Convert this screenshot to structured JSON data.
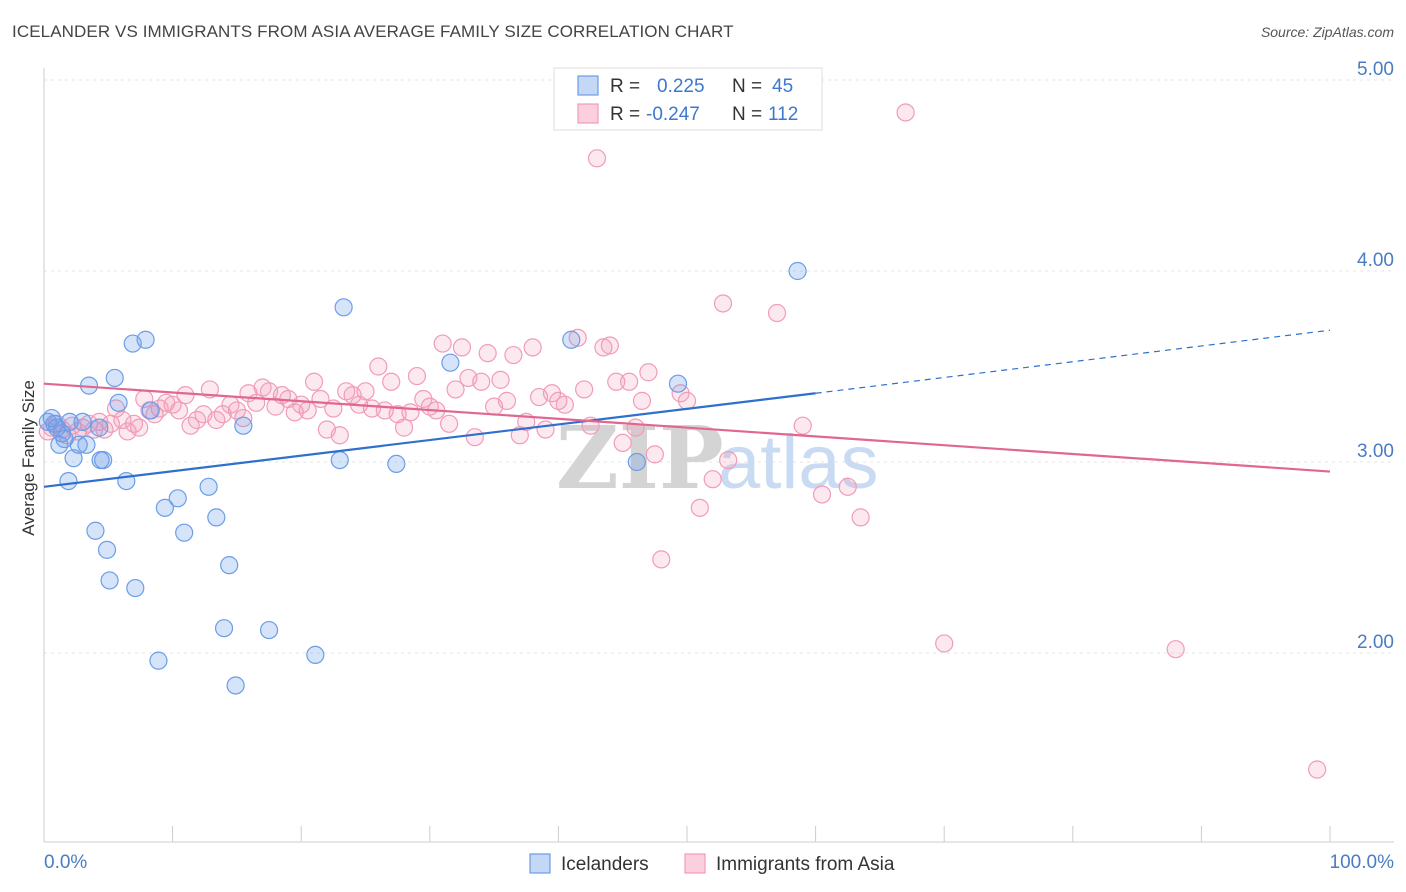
{
  "title": "ICELANDER VS IMMIGRANTS FROM ASIA AVERAGE FAMILY SIZE CORRELATION CHART",
  "source": "Source: ZipAtlas.com",
  "watermark": {
    "zip": "ZIP",
    "atlas": "atlas"
  },
  "chart_data": {
    "type": "scatter",
    "title": "ICELANDER VS IMMIGRANTS FROM ASIA AVERAGE FAMILY SIZE CORRELATION CHART",
    "xlabel": "",
    "ylabel": "Average Family Size",
    "xlim": [
      0,
      100
    ],
    "ylim": [
      1.0,
      5.3
    ],
    "x_tick_labels": [
      "0.0%",
      "100.0%"
    ],
    "y_ticks": [
      2.0,
      3.0,
      4.0,
      5.0
    ],
    "y_tick_labels": [
      "2.00",
      "3.00",
      "4.00",
      "5.00"
    ],
    "grid": true,
    "legend_position": "top-center",
    "series": [
      {
        "name": "Icelanders",
        "color": "#6b9de8",
        "line_color": "#2f6fce",
        "r_label": "R =",
        "r_value": "0.225",
        "n_label": "N =",
        "n_value": "45",
        "trend": {
          "x0": 0,
          "y0": 2.87,
          "x1": 60,
          "y1": 3.36,
          "dash_to_x": 100,
          "dash_to_y": 3.69
        },
        "points": [
          [
            0.3,
            3.21
          ],
          [
            0.6,
            3.23
          ],
          [
            0.8,
            3.2
          ],
          [
            1.0,
            3.18
          ],
          [
            1.2,
            3.09
          ],
          [
            1.4,
            3.15
          ],
          [
            1.6,
            3.12
          ],
          [
            2.0,
            3.21
          ],
          [
            1.9,
            2.9
          ],
          [
            2.3,
            3.02
          ],
          [
            2.7,
            3.09
          ],
          [
            3.0,
            3.21
          ],
          [
            3.3,
            3.09
          ],
          [
            3.5,
            3.4
          ],
          [
            4.0,
            2.64
          ],
          [
            4.3,
            3.18
          ],
          [
            4.4,
            3.01
          ],
          [
            4.6,
            3.01
          ],
          [
            4.9,
            2.54
          ],
          [
            5.1,
            2.38
          ],
          [
            5.5,
            3.44
          ],
          [
            5.8,
            3.31
          ],
          [
            6.4,
            2.9
          ],
          [
            6.9,
            3.62
          ],
          [
            7.1,
            2.34
          ],
          [
            7.9,
            3.64
          ],
          [
            8.3,
            3.27
          ],
          [
            8.9,
            1.96
          ],
          [
            9.4,
            2.76
          ],
          [
            10.4,
            2.81
          ],
          [
            10.9,
            2.63
          ],
          [
            12.8,
            2.87
          ],
          [
            13.4,
            2.71
          ],
          [
            14.0,
            2.13
          ],
          [
            14.4,
            2.46
          ],
          [
            14.9,
            1.83
          ],
          [
            15.5,
            3.19
          ],
          [
            17.5,
            2.12
          ],
          [
            21.1,
            1.99
          ],
          [
            23.0,
            3.01
          ],
          [
            23.3,
            3.81
          ],
          [
            27.4,
            2.99
          ],
          [
            31.6,
            3.52
          ],
          [
            41.0,
            3.64
          ],
          [
            46.1,
            3.0
          ],
          [
            49.3,
            3.41
          ],
          [
            58.6,
            4.0
          ]
        ]
      },
      {
        "name": "Immigrants from Asia",
        "color": "#f29bb8",
        "line_color": "#e0678f",
        "r_label": "R =",
        "r_value": "-0.247",
        "n_label": "N =",
        "n_value": "112",
        "trend": {
          "x0": 0,
          "y0": 3.41,
          "x1": 100,
          "y1": 2.95
        },
        "points": [
          [
            0.3,
            3.16
          ],
          [
            0.6,
            3.18
          ],
          [
            1.0,
            3.2
          ],
          [
            1.4,
            3.17
          ],
          [
            1.8,
            3.14
          ],
          [
            2.2,
            3.19
          ],
          [
            2.6,
            3.16
          ],
          [
            3.0,
            3.18
          ],
          [
            3.5,
            3.2
          ],
          [
            3.9,
            3.17
          ],
          [
            4.3,
            3.21
          ],
          [
            4.7,
            3.17
          ],
          [
            5.2,
            3.2
          ],
          [
            5.6,
            3.28
          ],
          [
            6.1,
            3.22
          ],
          [
            6.5,
            3.16
          ],
          [
            7.0,
            3.2
          ],
          [
            7.4,
            3.18
          ],
          [
            7.8,
            3.33
          ],
          [
            8.2,
            3.27
          ],
          [
            8.6,
            3.25
          ],
          [
            9.0,
            3.28
          ],
          [
            9.5,
            3.31
          ],
          [
            10.0,
            3.3
          ],
          [
            10.5,
            3.27
          ],
          [
            11.0,
            3.35
          ],
          [
            11.4,
            3.19
          ],
          [
            11.9,
            3.22
          ],
          [
            12.4,
            3.25
          ],
          [
            12.9,
            3.38
          ],
          [
            13.4,
            3.22
          ],
          [
            13.9,
            3.25
          ],
          [
            14.5,
            3.3
          ],
          [
            15.0,
            3.27
          ],
          [
            15.5,
            3.23
          ],
          [
            15.9,
            3.36
          ],
          [
            16.5,
            3.31
          ],
          [
            17.0,
            3.39
          ],
          [
            17.5,
            3.37
          ],
          [
            18.0,
            3.29
          ],
          [
            18.5,
            3.35
          ],
          [
            19.0,
            3.33
          ],
          [
            19.5,
            3.26
          ],
          [
            20.0,
            3.3
          ],
          [
            20.5,
            3.27
          ],
          [
            21.0,
            3.42
          ],
          [
            21.5,
            3.33
          ],
          [
            22.0,
            3.17
          ],
          [
            22.5,
            3.28
          ],
          [
            23.0,
            3.14
          ],
          [
            23.5,
            3.37
          ],
          [
            24.0,
            3.35
          ],
          [
            24.5,
            3.3
          ],
          [
            25.0,
            3.37
          ],
          [
            25.5,
            3.28
          ],
          [
            26.0,
            3.5
          ],
          [
            26.5,
            3.27
          ],
          [
            27.0,
            3.42
          ],
          [
            27.5,
            3.25
          ],
          [
            28.0,
            3.18
          ],
          [
            28.5,
            3.26
          ],
          [
            29.0,
            3.45
          ],
          [
            29.5,
            3.33
          ],
          [
            30.0,
            3.29
          ],
          [
            30.5,
            3.27
          ],
          [
            31.0,
            3.62
          ],
          [
            31.5,
            3.2
          ],
          [
            32.0,
            3.38
          ],
          [
            32.5,
            3.6
          ],
          [
            33.0,
            3.44
          ],
          [
            33.5,
            3.13
          ],
          [
            34.0,
            3.42
          ],
          [
            34.5,
            3.57
          ],
          [
            35.0,
            3.29
          ],
          [
            35.5,
            3.43
          ],
          [
            36.0,
            3.32
          ],
          [
            36.5,
            3.56
          ],
          [
            37.0,
            3.14
          ],
          [
            37.5,
            3.21
          ],
          [
            38.0,
            3.6
          ],
          [
            38.5,
            3.34
          ],
          [
            39.0,
            3.17
          ],
          [
            39.5,
            3.36
          ],
          [
            40.0,
            3.32
          ],
          [
            40.5,
            3.3
          ],
          [
            41.5,
            3.65
          ],
          [
            42.0,
            3.38
          ],
          [
            42.5,
            3.19
          ],
          [
            43.0,
            4.59
          ],
          [
            43.5,
            3.6
          ],
          [
            44.0,
            3.61
          ],
          [
            44.5,
            3.42
          ],
          [
            45.0,
            3.1
          ],
          [
            45.5,
            3.42
          ],
          [
            46.0,
            3.18
          ],
          [
            46.5,
            3.32
          ],
          [
            47.0,
            3.47
          ],
          [
            47.5,
            3.04
          ],
          [
            48.0,
            2.49
          ],
          [
            49.5,
            3.36
          ],
          [
            50.0,
            3.32
          ],
          [
            51.0,
            2.76
          ],
          [
            52.0,
            2.91
          ],
          [
            52.8,
            3.83
          ],
          [
            53.2,
            3.01
          ],
          [
            57.0,
            3.78
          ],
          [
            59.0,
            3.19
          ],
          [
            60.5,
            2.83
          ],
          [
            62.5,
            2.87
          ],
          [
            63.5,
            2.71
          ],
          [
            67.0,
            4.83
          ],
          [
            70.0,
            2.05
          ],
          [
            88.0,
            2.02
          ],
          [
            99.0,
            1.39
          ]
        ]
      }
    ]
  }
}
